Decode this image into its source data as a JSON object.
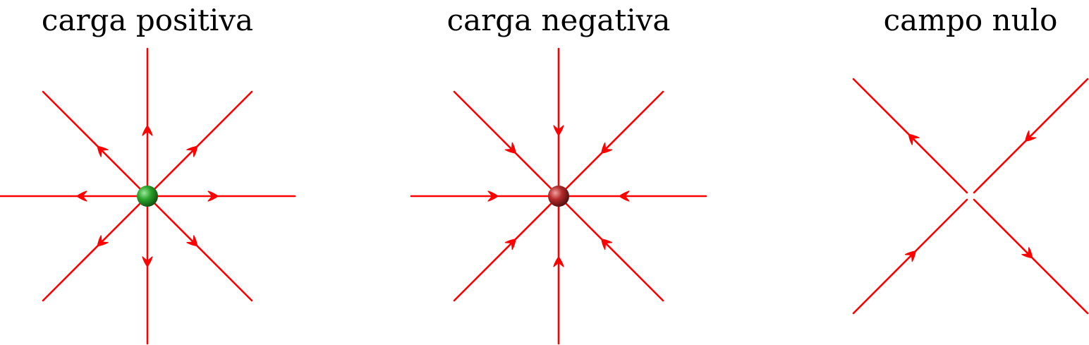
{
  "panels": [
    {
      "id": "positive",
      "title": "carga positiva",
      "charge": "positive",
      "direction": "outward",
      "charge_color": "#2aa32a"
    },
    {
      "id": "negative",
      "title": "carga negativa",
      "charge": "negative",
      "direction": "inward",
      "charge_color": "#b32a2a"
    },
    {
      "id": "null",
      "title": "campo nulo",
      "charge": "none",
      "direction": "saddle"
    }
  ],
  "colors": {
    "field_line": "#ff0000",
    "text": "#000000",
    "background": "#ffffff"
  }
}
